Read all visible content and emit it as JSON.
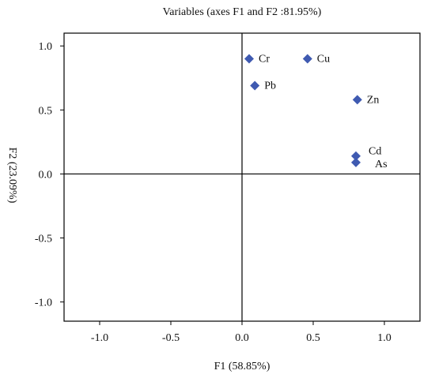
{
  "chart_data": {
    "type": "scatter",
    "title": "Variables (axes F1 and F2 :81.95%)",
    "xlabel": "F1 (58.85%)",
    "ylabel": "F2 (23.09%)",
    "xlim": [
      -1.25,
      1.25
    ],
    "ylim": [
      -1.15,
      1.1
    ],
    "xticks": [
      -1.0,
      -0.5,
      0.0,
      0.5,
      1.0
    ],
    "xtick_labels": [
      "-1.0",
      "-0.5",
      "0.0",
      "0.5",
      "1.0"
    ],
    "yticks": [
      1.0,
      0.5,
      0.0,
      -0.5,
      -1.0
    ],
    "ytick_labels": [
      "1.0",
      "0.5",
      "0.0",
      "-0.5",
      "-1.0"
    ],
    "grid": false,
    "reference_lines": {
      "x": 0,
      "y": 0
    },
    "marker": "diamond",
    "marker_color": "#3f5ab1",
    "points": [
      {
        "label": "Cr",
        "x": 0.05,
        "y": 0.9
      },
      {
        "label": "Cu",
        "x": 0.46,
        "y": 0.9
      },
      {
        "label": "Pb",
        "x": 0.09,
        "y": 0.69
      },
      {
        "label": "Zn",
        "x": 0.81,
        "y": 0.58
      },
      {
        "label": "Cd",
        "x": 0.8,
        "y": 0.14
      },
      {
        "label": "As",
        "x": 0.8,
        "y": 0.09
      }
    ]
  }
}
